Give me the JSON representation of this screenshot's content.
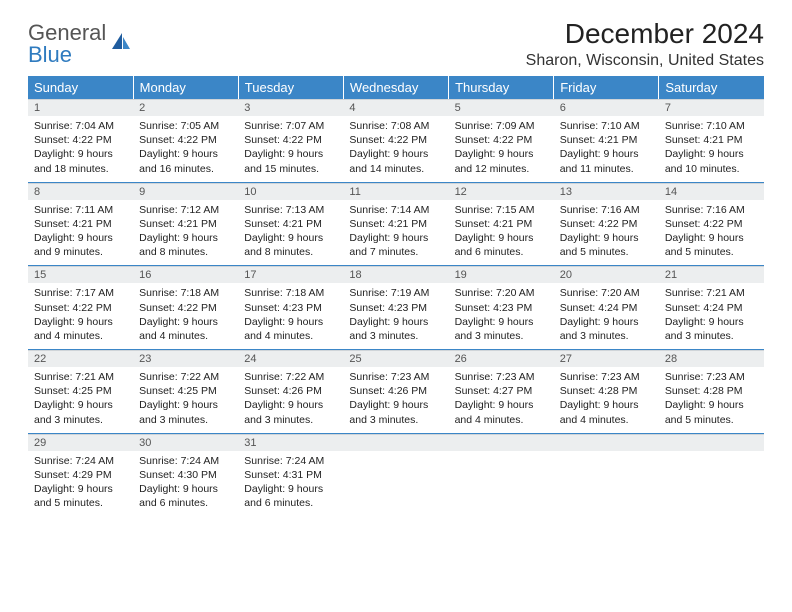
{
  "brand": {
    "line1": "General",
    "line2": "Blue"
  },
  "title": "December 2024",
  "location": "Sharon, Wisconsin, United States",
  "colors": {
    "header_bg": "#3b86c7",
    "header_text": "#ffffff",
    "daynum_bg": "#eceeef",
    "row_divider": "#3b86c7",
    "logo_gray": "#555555",
    "logo_blue": "#2f7bbf"
  },
  "weekdays": [
    "Sunday",
    "Monday",
    "Tuesday",
    "Wednesday",
    "Thursday",
    "Friday",
    "Saturday"
  ],
  "weeks": [
    [
      {
        "n": "1",
        "sr": "Sunrise: 7:04 AM",
        "ss": "Sunset: 4:22 PM",
        "d1": "Daylight: 9 hours",
        "d2": "and 18 minutes."
      },
      {
        "n": "2",
        "sr": "Sunrise: 7:05 AM",
        "ss": "Sunset: 4:22 PM",
        "d1": "Daylight: 9 hours",
        "d2": "and 16 minutes."
      },
      {
        "n": "3",
        "sr": "Sunrise: 7:07 AM",
        "ss": "Sunset: 4:22 PM",
        "d1": "Daylight: 9 hours",
        "d2": "and 15 minutes."
      },
      {
        "n": "4",
        "sr": "Sunrise: 7:08 AM",
        "ss": "Sunset: 4:22 PM",
        "d1": "Daylight: 9 hours",
        "d2": "and 14 minutes."
      },
      {
        "n": "5",
        "sr": "Sunrise: 7:09 AM",
        "ss": "Sunset: 4:22 PM",
        "d1": "Daylight: 9 hours",
        "d2": "and 12 minutes."
      },
      {
        "n": "6",
        "sr": "Sunrise: 7:10 AM",
        "ss": "Sunset: 4:21 PM",
        "d1": "Daylight: 9 hours",
        "d2": "and 11 minutes."
      },
      {
        "n": "7",
        "sr": "Sunrise: 7:10 AM",
        "ss": "Sunset: 4:21 PM",
        "d1": "Daylight: 9 hours",
        "d2": "and 10 minutes."
      }
    ],
    [
      {
        "n": "8",
        "sr": "Sunrise: 7:11 AM",
        "ss": "Sunset: 4:21 PM",
        "d1": "Daylight: 9 hours",
        "d2": "and 9 minutes."
      },
      {
        "n": "9",
        "sr": "Sunrise: 7:12 AM",
        "ss": "Sunset: 4:21 PM",
        "d1": "Daylight: 9 hours",
        "d2": "and 8 minutes."
      },
      {
        "n": "10",
        "sr": "Sunrise: 7:13 AM",
        "ss": "Sunset: 4:21 PM",
        "d1": "Daylight: 9 hours",
        "d2": "and 8 minutes."
      },
      {
        "n": "11",
        "sr": "Sunrise: 7:14 AM",
        "ss": "Sunset: 4:21 PM",
        "d1": "Daylight: 9 hours",
        "d2": "and 7 minutes."
      },
      {
        "n": "12",
        "sr": "Sunrise: 7:15 AM",
        "ss": "Sunset: 4:21 PM",
        "d1": "Daylight: 9 hours",
        "d2": "and 6 minutes."
      },
      {
        "n": "13",
        "sr": "Sunrise: 7:16 AM",
        "ss": "Sunset: 4:22 PM",
        "d1": "Daylight: 9 hours",
        "d2": "and 5 minutes."
      },
      {
        "n": "14",
        "sr": "Sunrise: 7:16 AM",
        "ss": "Sunset: 4:22 PM",
        "d1": "Daylight: 9 hours",
        "d2": "and 5 minutes."
      }
    ],
    [
      {
        "n": "15",
        "sr": "Sunrise: 7:17 AM",
        "ss": "Sunset: 4:22 PM",
        "d1": "Daylight: 9 hours",
        "d2": "and 4 minutes."
      },
      {
        "n": "16",
        "sr": "Sunrise: 7:18 AM",
        "ss": "Sunset: 4:22 PM",
        "d1": "Daylight: 9 hours",
        "d2": "and 4 minutes."
      },
      {
        "n": "17",
        "sr": "Sunrise: 7:18 AM",
        "ss": "Sunset: 4:23 PM",
        "d1": "Daylight: 9 hours",
        "d2": "and 4 minutes."
      },
      {
        "n": "18",
        "sr": "Sunrise: 7:19 AM",
        "ss": "Sunset: 4:23 PM",
        "d1": "Daylight: 9 hours",
        "d2": "and 3 minutes."
      },
      {
        "n": "19",
        "sr": "Sunrise: 7:20 AM",
        "ss": "Sunset: 4:23 PM",
        "d1": "Daylight: 9 hours",
        "d2": "and 3 minutes."
      },
      {
        "n": "20",
        "sr": "Sunrise: 7:20 AM",
        "ss": "Sunset: 4:24 PM",
        "d1": "Daylight: 9 hours",
        "d2": "and 3 minutes."
      },
      {
        "n": "21",
        "sr": "Sunrise: 7:21 AM",
        "ss": "Sunset: 4:24 PM",
        "d1": "Daylight: 9 hours",
        "d2": "and 3 minutes."
      }
    ],
    [
      {
        "n": "22",
        "sr": "Sunrise: 7:21 AM",
        "ss": "Sunset: 4:25 PM",
        "d1": "Daylight: 9 hours",
        "d2": "and 3 minutes."
      },
      {
        "n": "23",
        "sr": "Sunrise: 7:22 AM",
        "ss": "Sunset: 4:25 PM",
        "d1": "Daylight: 9 hours",
        "d2": "and 3 minutes."
      },
      {
        "n": "24",
        "sr": "Sunrise: 7:22 AM",
        "ss": "Sunset: 4:26 PM",
        "d1": "Daylight: 9 hours",
        "d2": "and 3 minutes."
      },
      {
        "n": "25",
        "sr": "Sunrise: 7:23 AM",
        "ss": "Sunset: 4:26 PM",
        "d1": "Daylight: 9 hours",
        "d2": "and 3 minutes."
      },
      {
        "n": "26",
        "sr": "Sunrise: 7:23 AM",
        "ss": "Sunset: 4:27 PM",
        "d1": "Daylight: 9 hours",
        "d2": "and 4 minutes."
      },
      {
        "n": "27",
        "sr": "Sunrise: 7:23 AM",
        "ss": "Sunset: 4:28 PM",
        "d1": "Daylight: 9 hours",
        "d2": "and 4 minutes."
      },
      {
        "n": "28",
        "sr": "Sunrise: 7:23 AM",
        "ss": "Sunset: 4:28 PM",
        "d1": "Daylight: 9 hours",
        "d2": "and 5 minutes."
      }
    ],
    [
      {
        "n": "29",
        "sr": "Sunrise: 7:24 AM",
        "ss": "Sunset: 4:29 PM",
        "d1": "Daylight: 9 hours",
        "d2": "and 5 minutes."
      },
      {
        "n": "30",
        "sr": "Sunrise: 7:24 AM",
        "ss": "Sunset: 4:30 PM",
        "d1": "Daylight: 9 hours",
        "d2": "and 6 minutes."
      },
      {
        "n": "31",
        "sr": "Sunrise: 7:24 AM",
        "ss": "Sunset: 4:31 PM",
        "d1": "Daylight: 9 hours",
        "d2": "and 6 minutes."
      },
      {
        "n": "",
        "sr": "",
        "ss": "",
        "d1": "",
        "d2": ""
      },
      {
        "n": "",
        "sr": "",
        "ss": "",
        "d1": "",
        "d2": ""
      },
      {
        "n": "",
        "sr": "",
        "ss": "",
        "d1": "",
        "d2": ""
      },
      {
        "n": "",
        "sr": "",
        "ss": "",
        "d1": "",
        "d2": ""
      }
    ]
  ]
}
